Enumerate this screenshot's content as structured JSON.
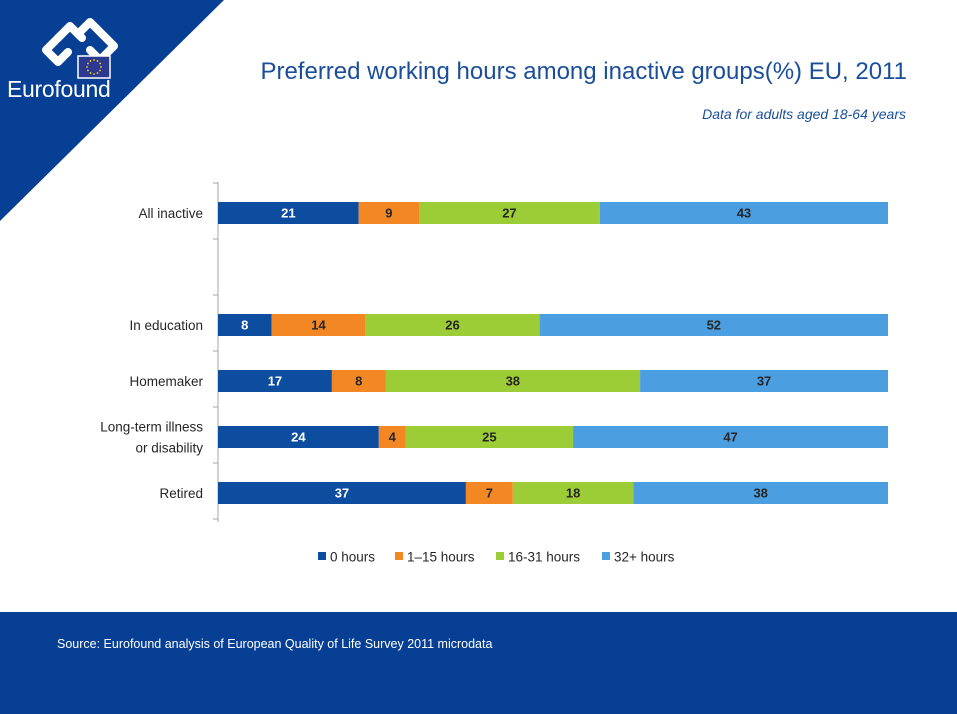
{
  "brand": {
    "name": "Eurofound",
    "colors": {
      "navy": "#063f94",
      "title_blue": "#1a4e9a",
      "eu_flag": "#2b3990",
      "eu_stars": "#ffd200"
    }
  },
  "header": {
    "title": "Preferred working hours among inactive groups(%) EU, 2011",
    "subtitle": "Data for adults aged 18-64 years"
  },
  "chart_data": {
    "type": "bar",
    "orientation": "horizontal",
    "stacked": true,
    "title": "Preferred working hours among inactive groups(%) EU, 2011",
    "subtitle": "Data for adults aged 18-64 years",
    "xlabel": "",
    "ylabel": "",
    "xlim": [
      0,
      100
    ],
    "grid": false,
    "legend_position": "bottom",
    "categories": [
      {
        "label": [
          "All inactive"
        ],
        "gap_after": true
      },
      {
        "label": [
          "In education"
        ]
      },
      {
        "label": [
          "Homemaker"
        ]
      },
      {
        "label": [
          "Long-term illness",
          "or disability"
        ]
      },
      {
        "label": [
          "Retired"
        ]
      }
    ],
    "series": [
      {
        "name": "0 hours",
        "color": "#0d4da0",
        "values": [
          21,
          8,
          17,
          24,
          37
        ]
      },
      {
        "name": "1–15 hours",
        "color": "#f38724",
        "values": [
          9,
          14,
          8,
          4,
          7
        ]
      },
      {
        "name": "16-31 hours",
        "color": "#9ccc36",
        "values": [
          27,
          26,
          38,
          25,
          18
        ]
      },
      {
        "name": "32+ hours",
        "color": "#4b9fe0",
        "values": [
          43,
          52,
          37,
          47,
          38
        ]
      }
    ]
  },
  "footer": {
    "source": "Source: Eurofound analysis of European Quality of Life Survey 2011 microdata"
  }
}
